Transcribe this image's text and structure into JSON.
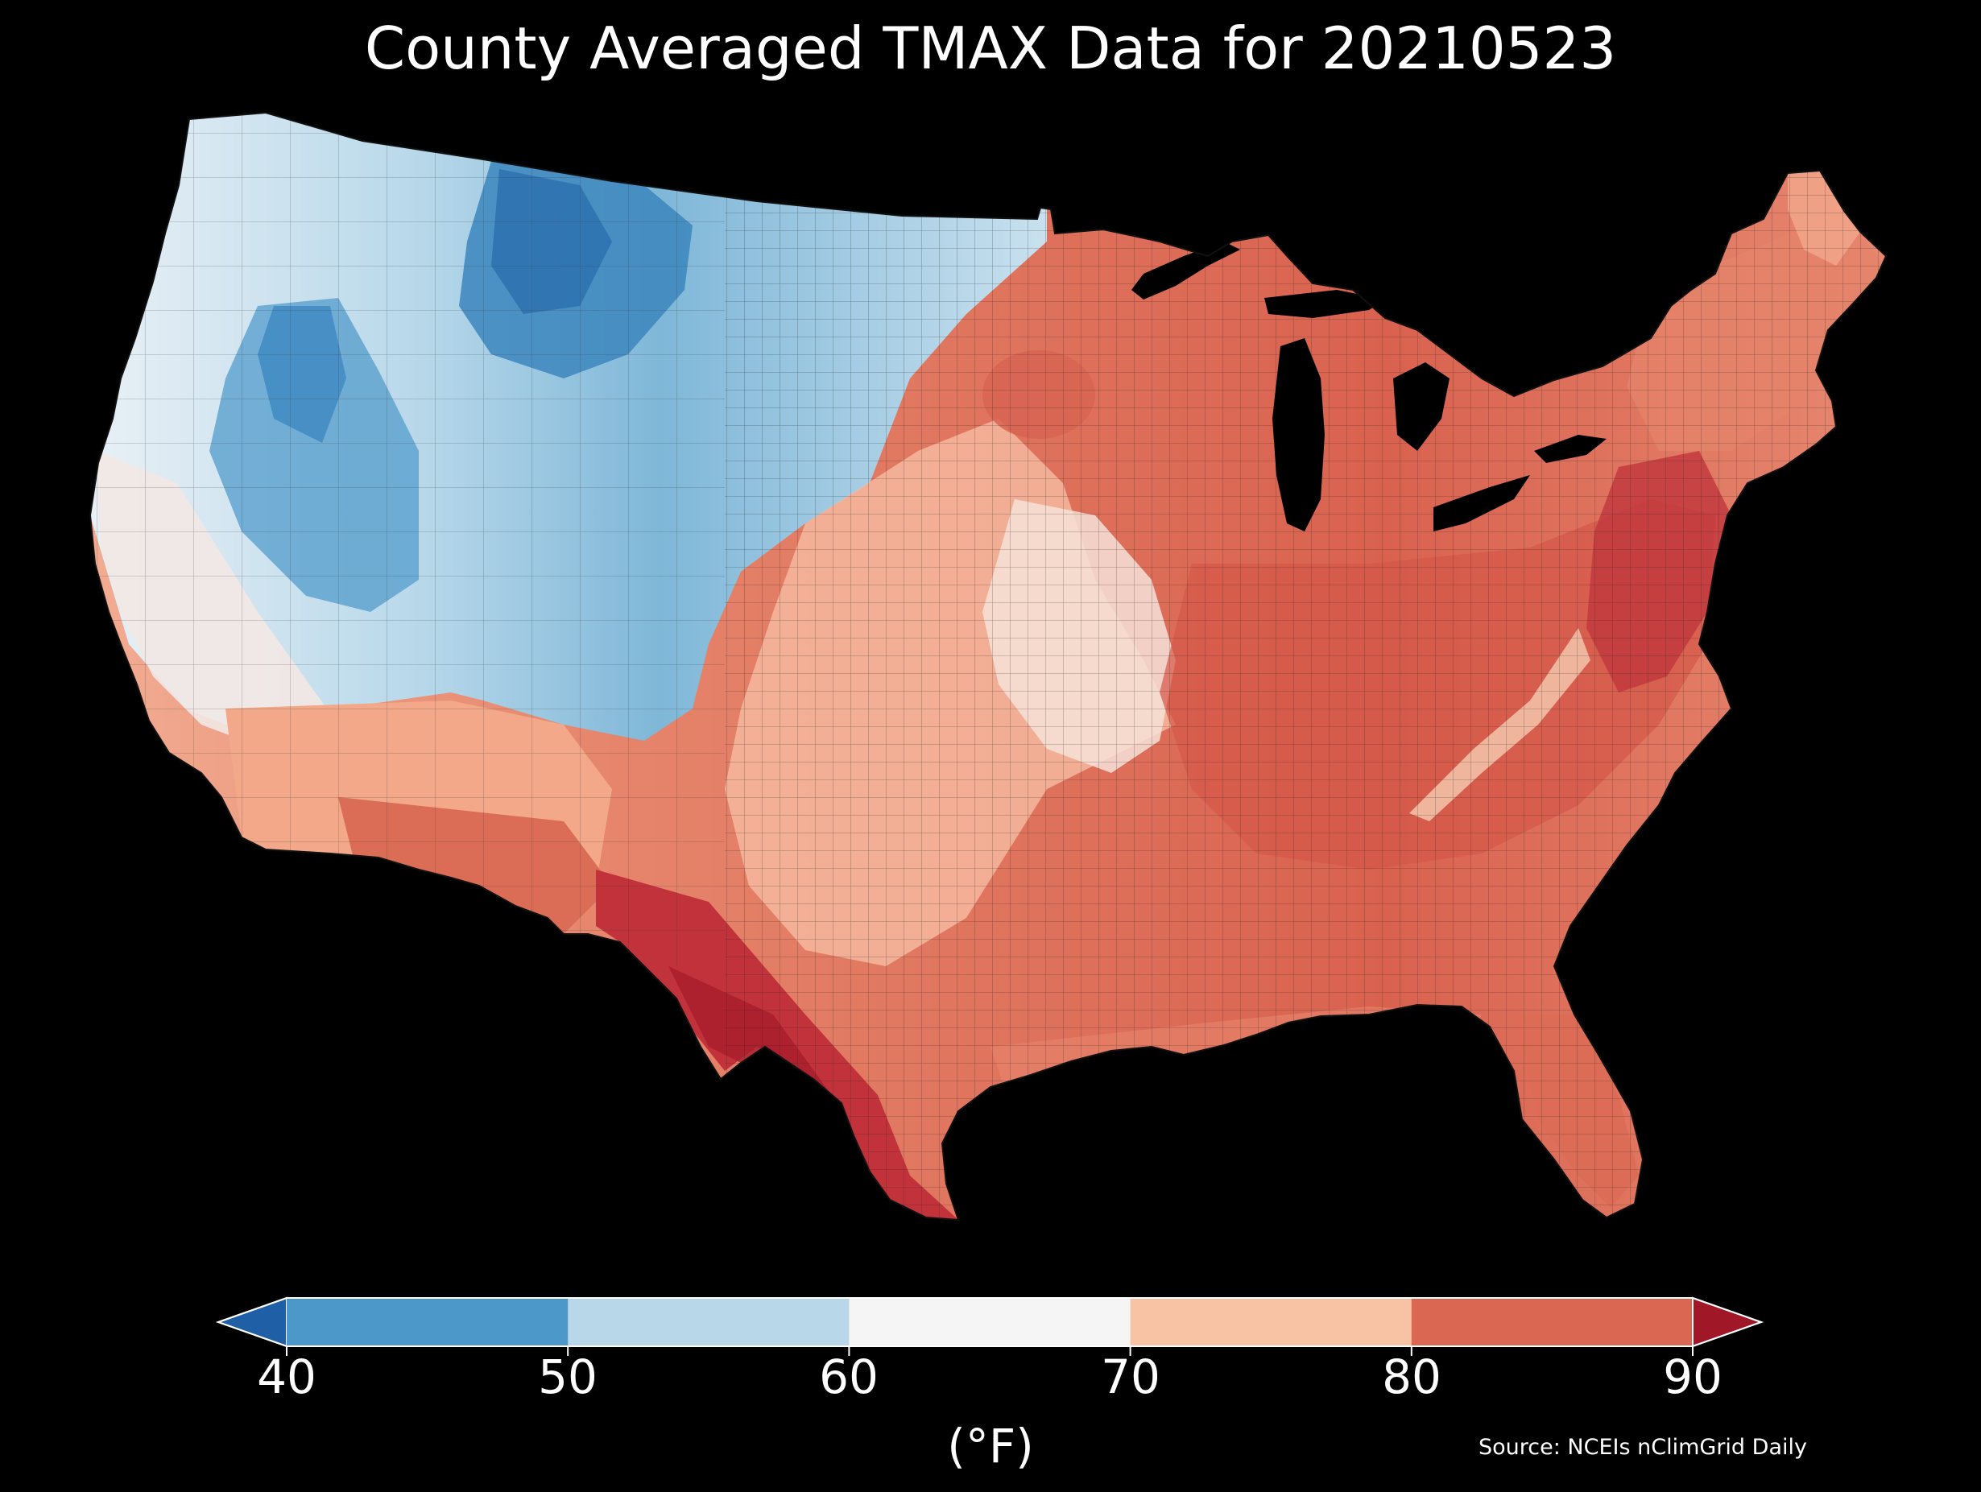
{
  "title": "County Averaged TMAX Data for 20210523",
  "colorbar": {
    "ticks": [
      "40",
      "50",
      "60",
      "70",
      "80",
      "90"
    ],
    "unit": "(°F)",
    "bins": [
      {
        "range": "<40",
        "color": "#1f5fa6"
      },
      {
        "range": "40-50",
        "color": "#4c98c8"
      },
      {
        "range": "50-60",
        "color": "#b8d8ea"
      },
      {
        "range": "60-70",
        "color": "#f5f5f5"
      },
      {
        "range": "70-80",
        "color": "#f8c2a5"
      },
      {
        "range": "80-90",
        "color": "#da6752"
      },
      {
        "range": ">90",
        "color": "#a01728"
      }
    ]
  },
  "source": "Source: NCEIs nClimGrid Daily",
  "map": {
    "region": "Contiguous United States",
    "background": "#000000",
    "water_color": "#000000"
  }
}
